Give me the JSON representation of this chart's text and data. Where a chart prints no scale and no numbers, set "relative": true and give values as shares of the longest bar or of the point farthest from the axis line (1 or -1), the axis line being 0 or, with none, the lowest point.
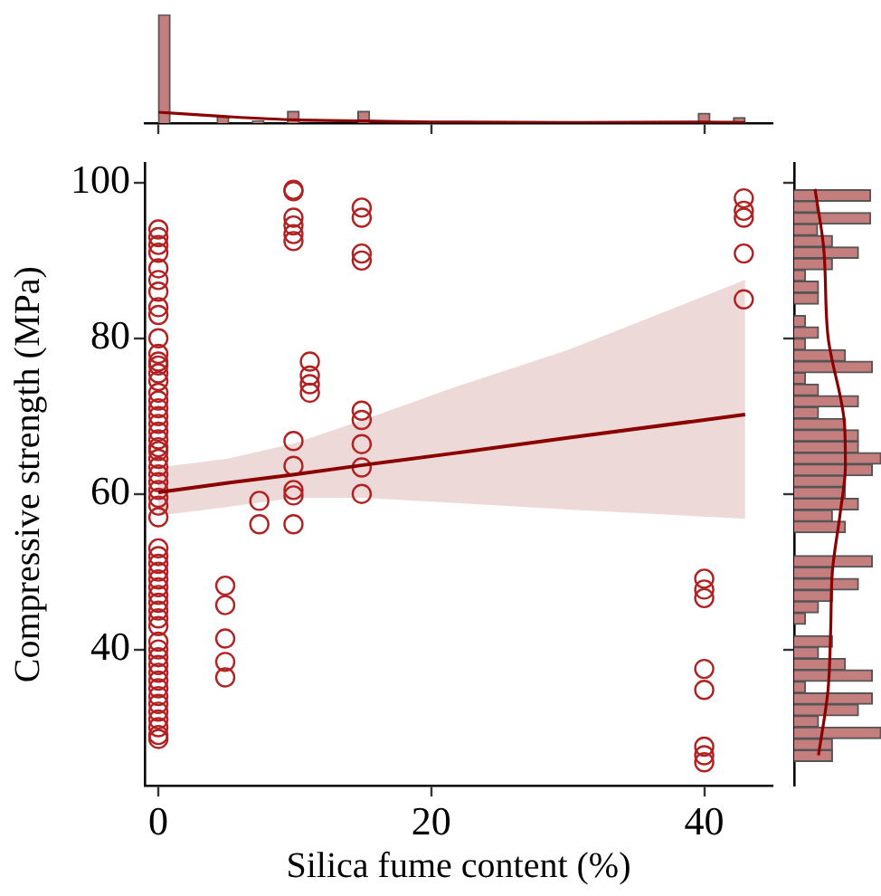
{
  "chart_data": [
    {
      "type": "histogram",
      "relative": true,
      "color": "#c47e7e",
      "xlim": [
        -1,
        45
      ],
      "xticks": [
        0,
        20,
        40
      ],
      "tick_labels": false,
      "bins": [
        0,
        0.86,
        1.72,
        2.58,
        3.44,
        4.3,
        5.16,
        6.02,
        6.88,
        7.74,
        8.6,
        9.46,
        10.32,
        11.18,
        12.04,
        12.9,
        13.76,
        14.62,
        15.48,
        16.34,
        17.2,
        18.06,
        18.92,
        19.78,
        20.64,
        21.5,
        22.36,
        23.22,
        24.08,
        24.94,
        25.8,
        26.66,
        27.52,
        28.38,
        29.24,
        30.1,
        30.96,
        31.82,
        32.68,
        33.54,
        34.4,
        35.26,
        36.12,
        36.98,
        37.84,
        38.7,
        39.56,
        40.42,
        41.28,
        42.14,
        43
      ],
      "values": [
        1,
        0,
        0,
        0,
        0,
        0.06,
        0,
        0,
        0.02,
        0,
        0,
        0.11,
        0,
        0,
        0,
        0,
        0,
        0.11,
        0,
        0,
        0,
        0,
        0,
        0,
        0,
        0,
        0,
        0,
        0,
        0,
        0,
        0,
        0,
        0,
        0,
        0,
        0,
        0,
        0,
        0,
        0,
        0,
        0,
        0,
        0,
        0,
        0.09,
        0,
        0,
        0.05
      ],
      "series": [
        {
          "type": "line",
          "color": "#8b0000",
          "x": [
            0,
            5,
            10,
            15,
            20,
            30,
            40,
            43
          ],
          "values": [
            0.1,
            0.06,
            0.03,
            0.02,
            0.01,
            0.005,
            0.01,
            0.005
          ]
        }
      ]
    },
    {
      "type": "scatter",
      "xlabel": "Silica fume content (%)",
      "ylabel": "Compressive strength (MPa)",
      "xlim": [
        -1,
        45
      ],
      "ylim": [
        22.5,
        102.5
      ],
      "xticks": [
        0,
        20,
        40
      ],
      "yticks": [
        40,
        60,
        80,
        100
      ],
      "series": [
        {
          "type": "scatter",
          "marker": "circle",
          "color": "#b22222",
          "x": [
            0,
            0,
            0,
            0,
            0,
            0,
            0,
            0,
            0,
            0,
            0,
            0,
            0,
            0,
            0,
            0,
            0,
            0,
            0,
            0,
            0,
            0,
            0,
            0,
            0,
            0,
            0,
            0,
            0,
            0,
            0,
            0,
            0,
            0,
            0,
            0,
            0,
            0,
            0,
            0,
            0,
            0,
            0,
            0,
            0,
            0,
            0,
            0,
            0,
            0,
            0,
            0,
            0,
            0,
            0,
            0,
            0,
            4.9,
            4.9,
            4.9,
            4.9,
            4.9,
            7.4,
            7.4,
            9.9,
            9.9,
            9.9,
            9.9,
            9.9,
            9.9,
            9.9,
            9.9,
            9.9,
            9.9,
            9.9,
            11.1,
            11.1,
            11.1,
            11.1,
            14.9,
            14.9,
            14.9,
            14.9,
            14.9,
            14.9,
            14.9,
            14.9,
            14.9,
            40,
            40,
            40,
            40,
            40,
            40,
            40,
            40,
            42.9,
            42.9,
            42.9,
            42.9,
            42.9
          ],
          "values": [
            94,
            93,
            92,
            91,
            89,
            87.5,
            86,
            84,
            83,
            80,
            78,
            77,
            76.5,
            75.5,
            74.5,
            73,
            72,
            71,
            70,
            69,
            68,
            67,
            66,
            65.5,
            64.5,
            63.5,
            62.5,
            61.5,
            60.5,
            59.5,
            58.5,
            57,
            53,
            52,
            51,
            50,
            49,
            48,
            47,
            46,
            45,
            44,
            43,
            41,
            40,
            39,
            38,
            37,
            36,
            35,
            34,
            33,
            32,
            31,
            30,
            29,
            28.5,
            48.2,
            45.7,
            41.4,
            38.4,
            36.4,
            59.1,
            56.1,
            99.1,
            98.9,
            95.5,
            94.5,
            93.4,
            92.5,
            66.8,
            63.6,
            60.5,
            59.8,
            56.1,
            77,
            75.2,
            74.1,
            73,
            96.8,
            95.5,
            90.9,
            90,
            70.7,
            69.5,
            66.4,
            63.4,
            60,
            49.1,
            47.7,
            46.6,
            37.5,
            34.8,
            27.5,
            26.4,
            25.5,
            98,
            96.4,
            95.5,
            90.9,
            85
          ]
        },
        {
          "type": "line",
          "color": "#8b0000",
          "x": [
            0,
            5,
            10,
            15,
            22,
            30,
            43
          ],
          "values": [
            60.2,
            61.4,
            62.5,
            63.7,
            65.3,
            67.2,
            70.2
          ],
          "lower": [
            57.2,
            58.3,
            59.5,
            59.5,
            58.8,
            58,
            56.8
          ],
          "upper": [
            63.4,
            64.5,
            66.5,
            69.5,
            73.9,
            78.5,
            87.5
          ]
        }
      ]
    },
    {
      "type": "histogram",
      "relative": true,
      "orientation": "horizontal",
      "color": "#c47e7e",
      "ylim": [
        22.5,
        102.5
      ],
      "yticks": [
        40,
        60,
        80,
        100
      ],
      "tick_labels": false,
      "bins": [
        25.6,
        27.07,
        28.54,
        30.01,
        31.48,
        32.95,
        34.42,
        35.89,
        37.36,
        38.83,
        40.3,
        41.77,
        43.24,
        44.71,
        46.18,
        47.65,
        49.12,
        50.59,
        52.06,
        53.53,
        55,
        56.47,
        57.94,
        59.41,
        60.88,
        62.35,
        63.82,
        65.29,
        66.76,
        68.23,
        69.7,
        71.17,
        72.64,
        74.11,
        75.58,
        77.05,
        78.52,
        79.99,
        81.46,
        82.93,
        84.4,
        85.87,
        87.34,
        88.81,
        90.28,
        91.75,
        93.22,
        94.69,
        96.16,
        97.63,
        99.1
      ],
      "values": [
        0.44,
        0.44,
        1,
        0.28,
        0.74,
        0.9,
        0.13,
        0.9,
        0.59,
        0.28,
        0.44,
        0,
        0.13,
        0.28,
        0.44,
        0.74,
        0.44,
        0.9,
        0,
        0,
        0.59,
        0.44,
        0.74,
        0.59,
        0.59,
        0.9,
        1,
        0.74,
        0.74,
        0.59,
        0.28,
        0.74,
        0.28,
        0.13,
        0.9,
        0.59,
        0.13,
        0.28,
        0.13,
        0,
        0.28,
        0.28,
        0.13,
        0.44,
        0.74,
        0.44,
        0.27,
        0.88,
        0.27,
        0.88
      ],
      "series": [
        {
          "type": "line",
          "color": "#8b0000",
          "x": [
            26.4,
            34.8,
            42.3,
            50,
            57.5,
            63.6,
            68.9,
            80.2,
            91.6,
            99.2
          ],
          "values": [
            0.28,
            0.39,
            0.42,
            0.44,
            0.53,
            0.59,
            0.58,
            0.39,
            0.34,
            0.24
          ]
        }
      ]
    }
  ]
}
